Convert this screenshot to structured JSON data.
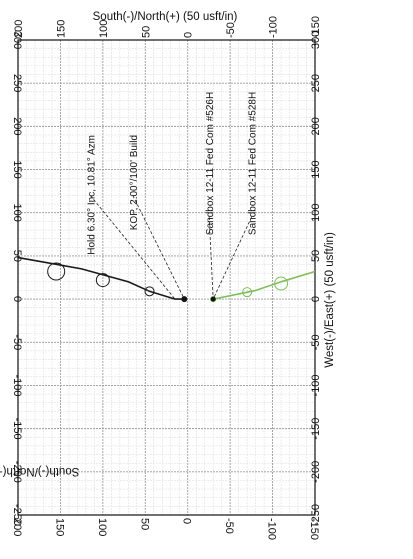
{
  "chart_data": {
    "type": "line",
    "top_axis_title": "South(-)/North(+) (50 usft/in)",
    "left_axis_title": "South(-)/North(+) (50 usft/in)",
    "bottom_axis_title": "West(-)/East(+) (50 usft/in)",
    "ns_ticks": [
      "200",
      "150",
      "100",
      "50",
      "0",
      "-50",
      "-100",
      "-150"
    ],
    "we_ticks": [
      "-250",
      "-200",
      "-150",
      "-100",
      "-50",
      "0",
      "50",
      "100",
      "150",
      "200",
      "250",
      "300"
    ],
    "ns_range": [
      -150,
      200
    ],
    "we_range": [
      -250,
      300
    ],
    "grid": true,
    "series": [
      {
        "color": "#1a1a1a",
        "points": [
          [
            4,
            0
          ],
          [
            15,
            0
          ],
          [
            45,
            9
          ],
          [
            70,
            20
          ],
          [
            125,
            35
          ],
          [
            165,
            42
          ],
          [
            200,
            48
          ]
        ],
        "markers": [
          [
            4,
            0
          ],
          [
            45,
            9
          ],
          [
            100,
            22
          ],
          [
            155,
            32
          ]
        ]
      },
      {
        "color": "#7fbf5a",
        "points": [
          [
            -30,
            0
          ],
          [
            -80,
            10
          ],
          [
            -110,
            20
          ],
          [
            -150,
            32
          ]
        ],
        "markers": [
          [
            -30,
            0
          ],
          [
            -70,
            8
          ],
          [
            -110,
            18
          ]
        ]
      }
    ],
    "annotations": [
      {
        "text": "Hold 6.30° Inc, 10.81° Azm"
      },
      {
        "text": "KOP, 2.00°/100' Build"
      },
      {
        "text": "Sandbox 12-11 Fed Com #526H"
      },
      {
        "text": "Sandbox 12-11 Fed Com #528H"
      }
    ]
  }
}
